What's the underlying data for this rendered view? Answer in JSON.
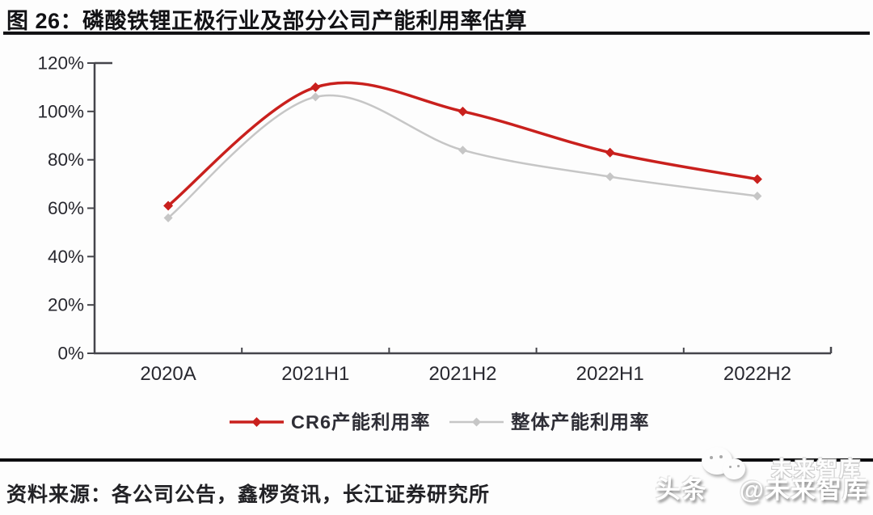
{
  "figure": {
    "title": "图 26：磷酸铁锂正极行业及部分公司产能利用率估算",
    "source_text": "资料来源：各公司公告，鑫椤资讯，长江证券研究所",
    "watermark": {
      "prefix": "头条",
      "suffix": "@未来智库",
      "ghost": "未来智库"
    }
  },
  "chart_data": {
    "type": "line",
    "title": "磷酸铁锂正极行业及部分公司产能利用率估算",
    "categories": [
      "2020A",
      "2021H1",
      "2021H2",
      "2022H1",
      "2022H2"
    ],
    "series": [
      {
        "name": "CR6产能利用率",
        "values": [
          61,
          110,
          100,
          83,
          72
        ],
        "color": "#c9201d",
        "line_width": 3.5,
        "marker": "diamond",
        "marker_size": 6
      },
      {
        "name": "整体产能利用率",
        "values": [
          56,
          106,
          84,
          73,
          65
        ],
        "color": "#c6c6c6",
        "line_width": 2.5,
        "marker": "diamond",
        "marker_size": 5.5
      }
    ],
    "xlabel": "",
    "ylabel": "",
    "ylim": [
      0,
      120
    ],
    "ytick_step": 20,
    "ytick_labels": [
      "0%",
      "20%",
      "40%",
      "60%",
      "80%",
      "100%",
      "120%"
    ],
    "grid": false,
    "smooth": true,
    "legend_position": "bottom"
  },
  "colors": {
    "axis": "#45454b",
    "tick_label": "#28282f",
    "legend_text": "#2e2e36",
    "title_rule": "#121215",
    "footer_rule": "#0d0d0f",
    "series_red": "#c9201d",
    "series_gray": "#c6c6c6"
  }
}
